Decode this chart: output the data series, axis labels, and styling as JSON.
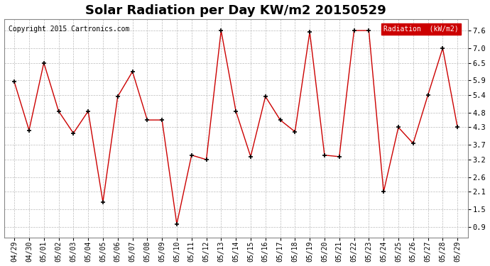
{
  "title": "Solar Radiation per Day KW/m2 20150529",
  "copyright": "Copyright 2015 Cartronics.com",
  "legend_label": "Radiation  (kW/m2)",
  "x_labels": [
    "04/29",
    "04/30",
    "05/01",
    "05/02",
    "05/03",
    "05/04",
    "05/05",
    "05/06",
    "05/07",
    "05/08",
    "05/09",
    "05/10",
    "05/11",
    "05/12",
    "05/13",
    "05/14",
    "05/15",
    "05/16",
    "05/17",
    "05/18",
    "05/19",
    "05/20",
    "05/21",
    "05/22",
    "05/23",
    "05/24",
    "05/25",
    "05/26",
    "05/27",
    "05/28",
    "05/29"
  ],
  "y_values": [
    5.85,
    4.2,
    6.5,
    4.85,
    4.1,
    4.85,
    1.75,
    5.35,
    6.2,
    4.55,
    4.55,
    1.0,
    3.35,
    3.2,
    7.6,
    4.85,
    3.3,
    5.35,
    4.55,
    4.15,
    7.55,
    3.35,
    3.3,
    7.6,
    7.6,
    2.1,
    4.3,
    3.75,
    5.4,
    7.0,
    4.3
  ],
  "ylabel_ticks": [
    0.9,
    1.5,
    2.1,
    2.6,
    3.2,
    3.7,
    4.3,
    4.8,
    5.4,
    5.9,
    6.5,
    7.0,
    7.6
  ],
  "line_color": "#cc0000",
  "marker_color": "#000000",
  "grid_color": "#bbbbbb",
  "background_color": "#ffffff",
  "legend_bg": "#cc0000",
  "legend_text_color": "#ffffff",
  "ylim_min": 0.55,
  "ylim_max": 8.0,
  "title_fontsize": 13,
  "tick_fontsize": 7,
  "copyright_fontsize": 7
}
